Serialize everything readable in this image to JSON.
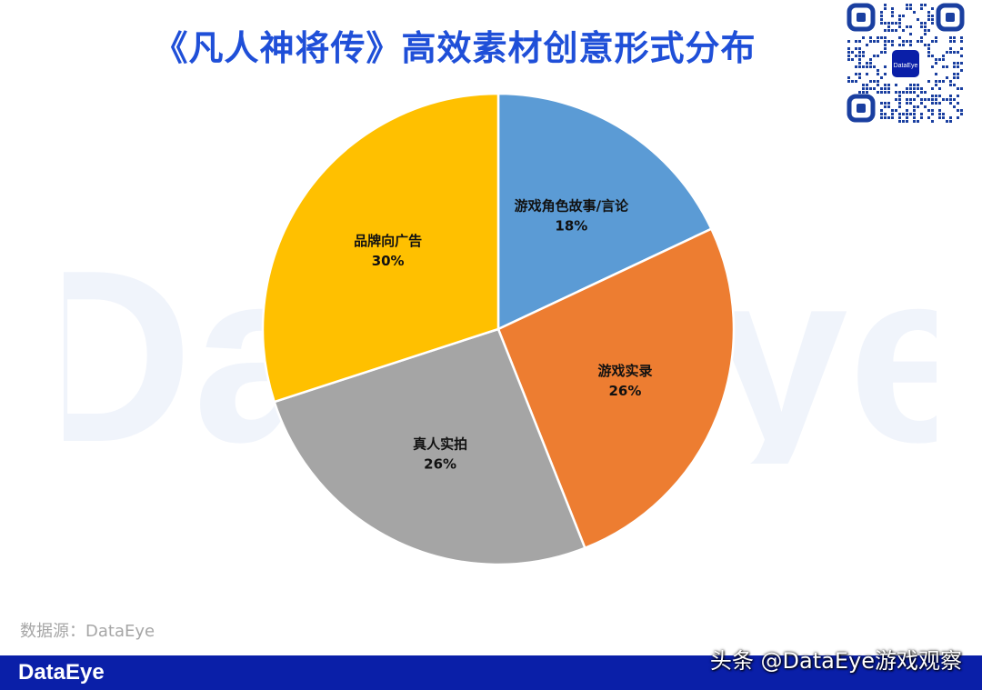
{
  "title": "《凡人神将传》高效素材创意形式分布",
  "watermark_text": "DataEye",
  "qr_center_text": "DataEye",
  "source_text": "数据源：DataEye",
  "footer": {
    "logo_text": "DataEye",
    "credit_text": "头条 @DataEye游戏观察"
  },
  "colors": {
    "title": "#1f4fd8",
    "footer_bar": "#0a1fa8"
  },
  "chart_data": {
    "type": "pie",
    "start_angle_deg": 0,
    "direction": "clockwise",
    "slices": [
      {
        "label": "游戏角色故事/言论",
        "value": 18,
        "value_text": "18%",
        "color": "#5b9bd5"
      },
      {
        "label": "游戏实录",
        "value": 26,
        "value_text": "26%",
        "color": "#ed7d31"
      },
      {
        "label": "真人实拍",
        "value": 26,
        "value_text": "26%",
        "color": "#a5a5a5"
      },
      {
        "label": "品牌向广告",
        "value": 30,
        "value_text": "30%",
        "color": "#ffc000"
      }
    ]
  }
}
